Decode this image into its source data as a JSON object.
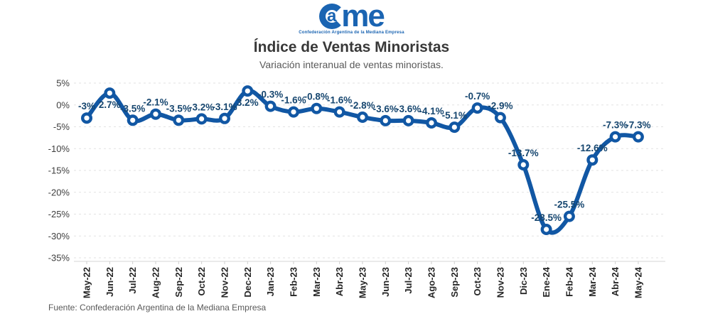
{
  "logo": {
    "a": "a",
    "me": "me",
    "tagline": "Confederación Argentina de la Mediana Empresa"
  },
  "title": "Índice de Ventas Minoristas",
  "subtitle": "Variación interanual de ventas minoristas.",
  "footer": "Fuente: Confederación Argentina de la Mediana Empresa",
  "chart_data": {
    "type": "line",
    "title": "Índice de Ventas Minoristas",
    "subtitle": "Variación interanual de ventas minoristas.",
    "categories": [
      "May-22",
      "Jun-22",
      "Jul-22",
      "Aug-22",
      "Sep-22",
      "Oct-22",
      "Nov-22",
      "Dec-22",
      "Jan-23",
      "Feb-23",
      "Mar-23",
      "Abr-23",
      "May-23",
      "Jun-23",
      "Jul-23",
      "Ago-23",
      "Sep-23",
      "Oct-23",
      "Nov-23",
      "Dic-23",
      "Ene-24",
      "Feb-24",
      "Mar-24",
      "Abr-24",
      "May-24"
    ],
    "values": [
      -3,
      2.7,
      -3.5,
      -2.1,
      -3.5,
      -3.2,
      -3.1,
      3.2,
      -0.3,
      -1.6,
      -0.8,
      -1.6,
      -2.8,
      -3.6,
      -3.6,
      -4.1,
      -5.1,
      -0.7,
      -2.9,
      -13.7,
      -28.5,
      -25.5,
      -12.6,
      -7.3,
      -7.3
    ],
    "point_labels": [
      "-3%",
      "2.7%",
      "-3.5%",
      "-2.1%",
      "-3.5%",
      "-3.2%",
      "-3.1%",
      "3.2%",
      "-0.3%",
      "-1.6%",
      "-0.8%",
      "-1.6%",
      "-2.8%",
      "-3.6%",
      "-3.6%",
      "-4.1%",
      "-5.1%",
      "-0.7%",
      "-2.9%",
      "-13.7%",
      "-28.5%",
      "-25.5%",
      "-12.6%",
      "-7.3%",
      "-7.3%"
    ],
    "ylim": [
      -35,
      5
    ],
    "ytick_step": 5,
    "ytick_labels": [
      "5%",
      "0%",
      "-5%",
      "-10%",
      "-15%",
      "-20%",
      "-25%",
      "-30%",
      "-35%"
    ],
    "grid": true,
    "legend": "none",
    "smoothed": true,
    "line_color": "#1157a4",
    "marker_fill": "#ffffff",
    "point_label_color": "#16466f",
    "axis_text_color": "#3f3f3f",
    "grid_color": "#e2e2e2",
    "labels_below_indices": [
      1,
      7
    ]
  }
}
